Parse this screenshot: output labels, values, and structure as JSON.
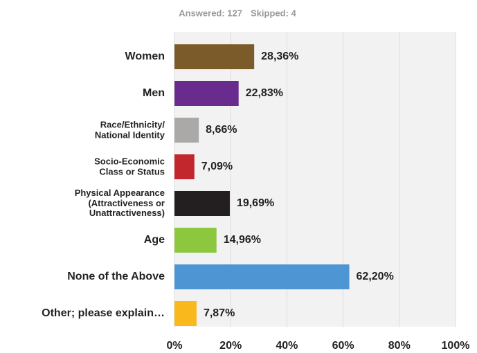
{
  "chart_data": {
    "type": "barh",
    "subtitle": [
      "Answered: 127",
      "Skipped: 4"
    ],
    "categories": [
      "Women",
      "Men",
      "Race/Ethnicity/\nNational Identity",
      "Socio-Economic\nClass or Status",
      "Physical Appearance\n(Attractiveness or\nUnattractiveness)",
      "Age",
      "None of the Above",
      "Other; please explain…"
    ],
    "values": [
      28.36,
      22.83,
      8.66,
      7.09,
      19.69,
      14.96,
      62.2,
      7.87
    ],
    "value_labels": [
      "28,36%",
      "22,83%",
      "8,66%",
      "7,09%",
      "19,69%",
      "14,96%",
      "62,20%",
      "7,87%"
    ],
    "colors": [
      "#7b5b2a",
      "#6a2b8e",
      "#aba8a8",
      "#c1272d",
      "#231f20",
      "#8dc63f",
      "#4e96d3",
      "#f9b81b"
    ],
    "xlim": [
      0,
      100
    ],
    "xticks": [
      {
        "value": 0,
        "label": "0%"
      },
      {
        "value": 20,
        "label": "20%"
      },
      {
        "value": 40,
        "label": "40%"
      },
      {
        "value": 60,
        "label": "60%"
      },
      {
        "value": 80,
        "label": "80%"
      },
      {
        "value": 100,
        "label": "100%"
      }
    ],
    "grid": true
  }
}
